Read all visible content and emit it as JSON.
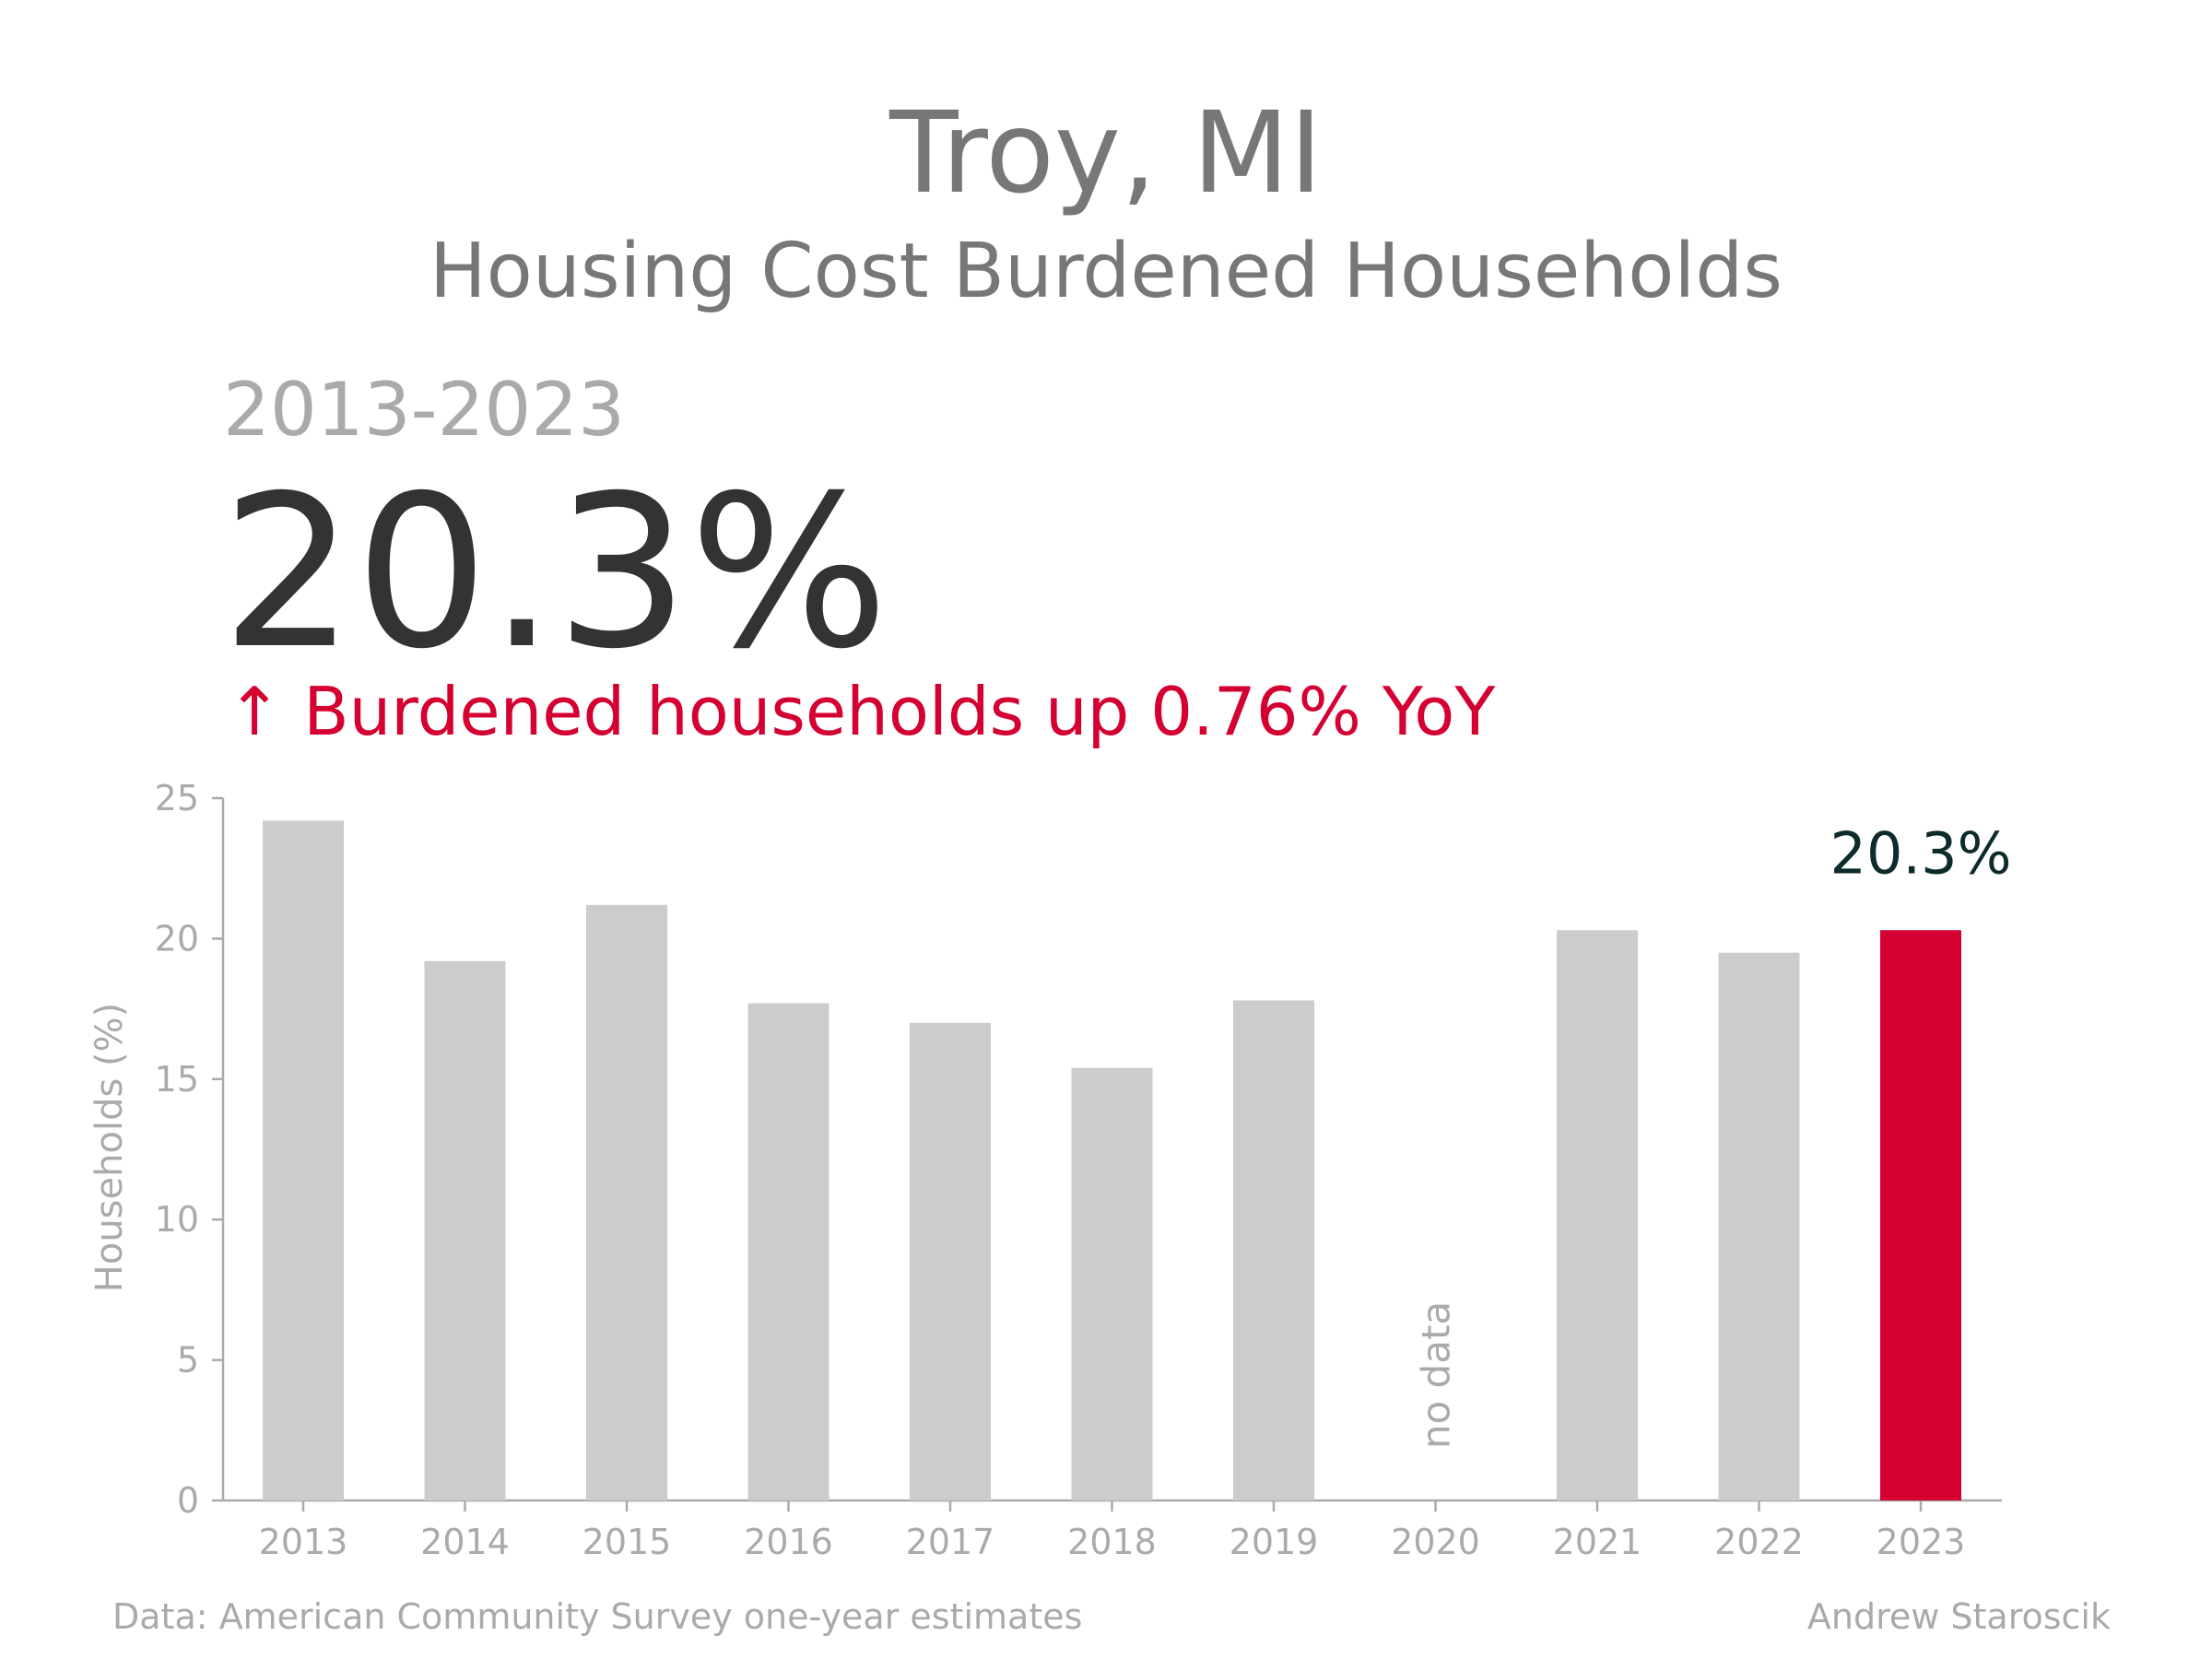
{
  "header": {
    "title": "Troy, MI",
    "subtitle": "Housing Cost Burdened Households",
    "period": "2013-2023",
    "headline_value": "20.3%",
    "change_text": "↑ Burdened households up 0.76% YoY"
  },
  "footer": {
    "source": "Data: American Community Survey one-year estimates",
    "author": "Andrew Staroscik"
  },
  "colors": {
    "title": "#777777",
    "period": "#aaaaaa",
    "headline": "#333333",
    "accent": "#d50032",
    "bar": "#cccccc",
    "axis": "#aaaaaa",
    "annotation": "#0d2b2b"
  },
  "chart_data": {
    "type": "bar",
    "categories": [
      "2013",
      "2014",
      "2015",
      "2016",
      "2017",
      "2018",
      "2019",
      "2020",
      "2021",
      "2022",
      "2023"
    ],
    "values": [
      24.2,
      19.2,
      21.2,
      17.7,
      17.0,
      15.4,
      17.8,
      null,
      20.3,
      19.5,
      20.3
    ],
    "highlight_category": "2023",
    "highlight_label": "20.3%",
    "missing_label": "no data",
    "ylabel": "Households (%)",
    "xlabel": "",
    "ylim": [
      0,
      25
    ],
    "yticks": [
      0,
      5,
      10,
      15,
      20,
      25
    ],
    "grid": false,
    "legend": "none"
  }
}
